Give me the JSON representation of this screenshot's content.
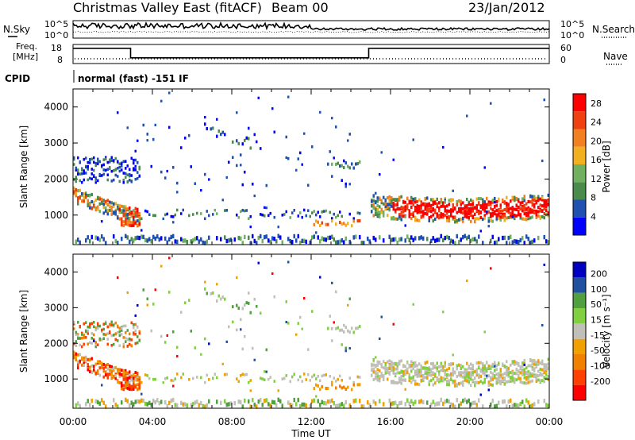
{
  "header": {
    "title": "Christmas Valley East (fitACF)",
    "beam": "Beam 00",
    "date": "23/Jan/2012"
  },
  "noise_panel": {
    "left_label": "N.Sky",
    "left_ticks": [
      "10^5",
      "10^0"
    ],
    "right_ticks": [
      "10^5",
      "10^0"
    ],
    "right_label": "N.Search"
  },
  "freq_panel": {
    "left_label": [
      "Freq.",
      "[MHz]"
    ],
    "left_ticks": [
      "18",
      "8"
    ],
    "right_ticks": [
      "60",
      "0"
    ],
    "right_label": "Nave"
  },
  "cpid_panel": {
    "label": "CPID",
    "text": "normal (fast) -151 IF"
  },
  "colors": {
    "power_scale": [
      "#0000ff",
      "#2050b0",
      "#4a8a4a",
      "#70b060",
      "#f0b020",
      "#f08020",
      "#f04010",
      "#ff0000"
    ],
    "velocity_scale": [
      "#ff0000",
      "#ff4000",
      "#f08000",
      "#f0a000",
      "#c0c0b8",
      "#80d040",
      "#50a040",
      "#2050a0",
      "#0000c0"
    ]
  },
  "chart_data": [
    {
      "type": "heatmap",
      "name": "power",
      "ylabel": "Slant Range [km]",
      "yticks": [
        1000,
        2000,
        3000,
        4000
      ],
      "ylim": [
        180,
        4500
      ],
      "xticks": [
        "00:00",
        "04:00",
        "08:00",
        "12:00",
        "16:00",
        "20:00",
        "00:00"
      ],
      "xlim_hours": [
        0,
        24
      ],
      "colorbar": {
        "label": "Power [dB]",
        "ticks": [
          "4",
          "8",
          "12",
          "16",
          "20",
          "24",
          "28"
        ],
        "range": [
          0,
          30
        ]
      }
    },
    {
      "type": "heatmap",
      "name": "velocity",
      "ylabel": "Slant Range [km]",
      "yticks": [
        1000,
        2000,
        3000,
        4000
      ],
      "ylim": [
        180,
        4500
      ],
      "xticks": [
        "00:00",
        "04:00",
        "08:00",
        "12:00",
        "16:00",
        "20:00",
        "00:00"
      ],
      "xlabel": "Time UT",
      "xlim_hours": [
        0,
        24
      ],
      "colorbar": {
        "label": "Velocity [m s⁻¹]",
        "ticks": [
          "200",
          "100",
          "50",
          "15",
          "-15",
          "-50",
          "-100",
          "-200"
        ]
      }
    },
    {
      "type": "line",
      "name": "frequency",
      "x_hours": [
        0,
        2.9,
        2.9,
        14.9,
        14.9,
        24
      ],
      "y_mhz": [
        16,
        16,
        11,
        11,
        16,
        16
      ]
    }
  ]
}
